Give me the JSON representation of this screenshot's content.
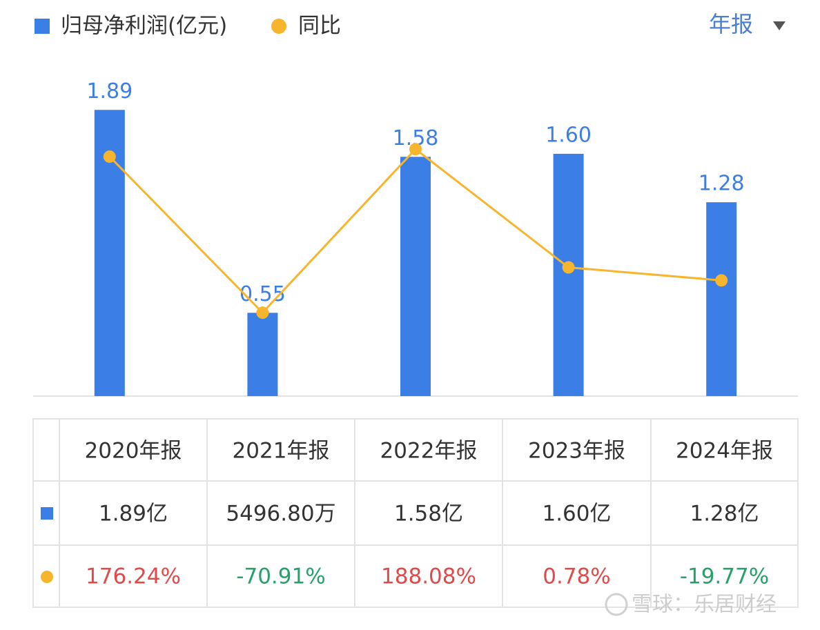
{
  "chart_data": {
    "type": "bar-line",
    "categories": [
      "2020年报",
      "2021年报",
      "2022年报",
      "2023年报",
      "2024年报"
    ],
    "series": [
      {
        "name": "归母净利润(亿元)",
        "color": "#3b7fe6",
        "values": [
          1.89,
          0.55,
          1.58,
          1.6,
          1.28
        ],
        "value_labels": [
          "1.89",
          "0.55",
          "1.58",
          "1.60",
          "1.28"
        ]
      },
      {
        "name": "同比",
        "color": "#f6b52c",
        "axis": "y2",
        "values": [
          176.24,
          -70.91,
          188.08,
          0.78,
          -19.77
        ]
      }
    ],
    "ylim": [
      0,
      2.16
    ],
    "y2lim": [
      -203,
      315
    ]
  },
  "period_selector": "年报",
  "table": {
    "rows": [
      [
        "1.89亿",
        "5496.80万",
        "1.58亿",
        "1.60亿",
        "1.28亿"
      ],
      [
        "176.24%",
        "-70.91%",
        "188.08%",
        "0.78%",
        "-19.77%"
      ]
    ],
    "positive_color": "#e04a4a",
    "negative_color": "#27a06a"
  },
  "watermark": "雪球：乐居财经"
}
